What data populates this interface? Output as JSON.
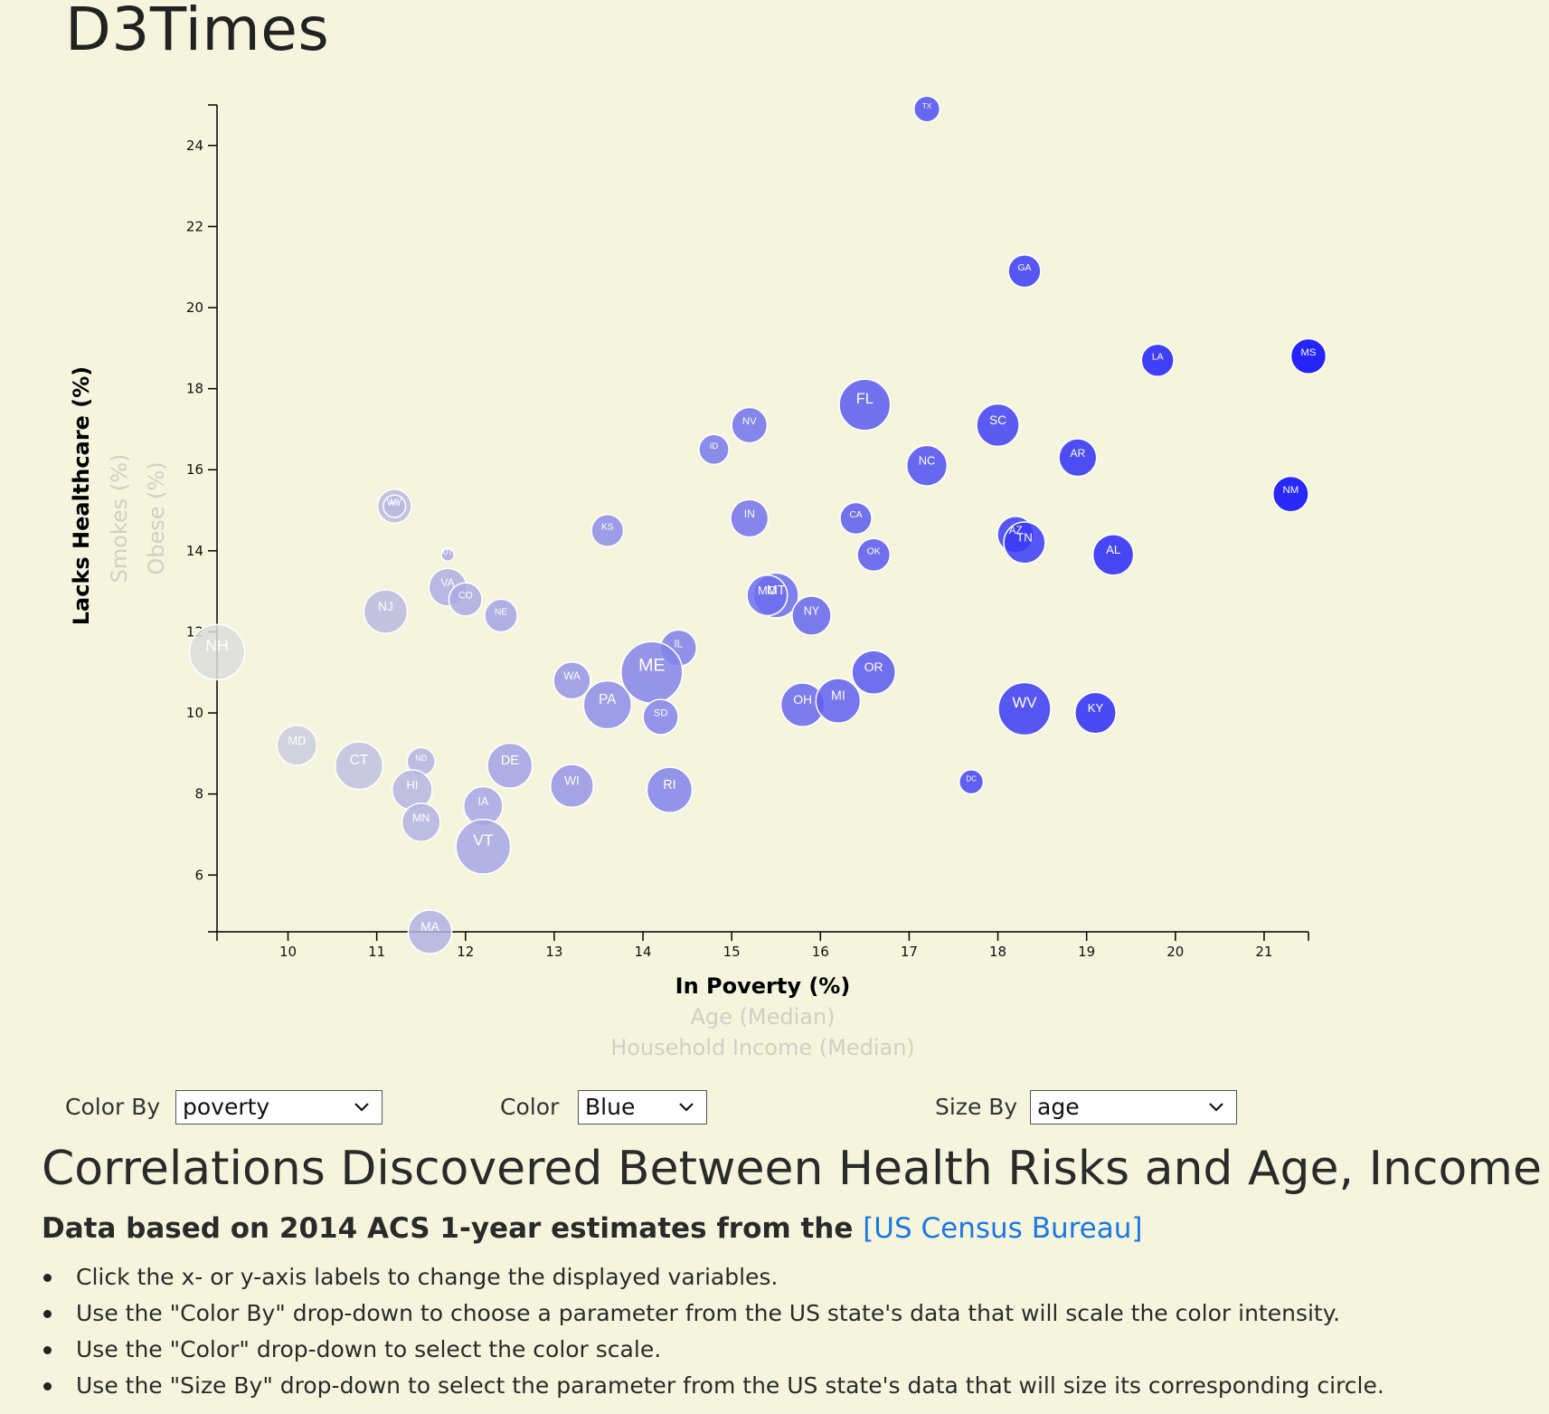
{
  "brand": "D3Times",
  "controls": {
    "color_by_label": "Color By",
    "color_by_value": "poverty",
    "color_label": "Color",
    "color_value": "Blue",
    "size_by_label": "Size By",
    "size_by_value": "age"
  },
  "headline": "Correlations Discovered Between Health Risks and Age, Income",
  "subhead": {
    "text": "Data based on 2014 ACS 1-year estimates from the ",
    "link_text": "[US Census Bureau]"
  },
  "notes": [
    "Click the x- or y-axis labels to change the displayed variables.",
    "Use the \"Color By\" drop-down to choose a parameter from the US state's data that will scale the color intensity.",
    "Use the \"Color\" drop-down to select the color scale.",
    "Use the \"Size By\" drop-down to select the parameter from the US state's data that will size its corresponding circle."
  ],
  "colors": {
    "background": "#f5f5de",
    "scale_low": "#dcdcdc",
    "scale_high": "#0000ff",
    "link": "#1b78e2"
  },
  "chart_data": {
    "type": "scatter",
    "x_axis_labels": [
      {
        "text": "In Poverty (%)",
        "active": true
      },
      {
        "text": "Age (Median)",
        "active": false
      },
      {
        "text": "Household Income (Median)",
        "active": false
      }
    ],
    "y_axis_labels": [
      {
        "text": "Lacks Healthcare (%)",
        "active": true
      },
      {
        "text": "Smokes (%)",
        "active": false
      },
      {
        "text": "Obese (%)",
        "active": false
      }
    ],
    "xlim": [
      9.2,
      21.5
    ],
    "ylim": [
      4.6,
      25.0
    ],
    "x_ticks": [
      10,
      11,
      12,
      13,
      14,
      15,
      16,
      17,
      18,
      19,
      20,
      21
    ],
    "y_ticks": [
      6,
      8,
      10,
      12,
      14,
      16,
      18,
      20,
      22,
      24
    ],
    "points": [
      {
        "abbr": "TX",
        "x": 17.2,
        "y": 24.9,
        "age": 34.3
      },
      {
        "abbr": "GA",
        "x": 18.3,
        "y": 20.9,
        "age": 36.2
      },
      {
        "abbr": "LA",
        "x": 19.8,
        "y": 18.7,
        "age": 36.2
      },
      {
        "abbr": "MS",
        "x": 21.5,
        "y": 18.8,
        "age": 37.0
      },
      {
        "abbr": "FL",
        "x": 16.5,
        "y": 17.6,
        "age": 41.6
      },
      {
        "abbr": "NV",
        "x": 15.2,
        "y": 17.1,
        "age": 37.1
      },
      {
        "abbr": "ID",
        "x": 14.8,
        "y": 16.5,
        "age": 35.5
      },
      {
        "abbr": "SC",
        "x": 18.0,
        "y": 17.1,
        "age": 39.1
      },
      {
        "abbr": "NC",
        "x": 17.2,
        "y": 16.1,
        "age": 38.5
      },
      {
        "abbr": "AR",
        "x": 18.9,
        "y": 16.3,
        "age": 37.7
      },
      {
        "abbr": "NM",
        "x": 21.3,
        "y": 15.4,
        "age": 37.1
      },
      {
        "abbr": "WY",
        "x": 11.2,
        "y": 15.1,
        "age": 36.6
      },
      {
        "abbr": "AK",
        "x": 11.2,
        "y": 15.1,
        "age": 33.3
      },
      {
        "abbr": "KS",
        "x": 13.6,
        "y": 14.5,
        "age": 36.1
      },
      {
        "abbr": "IN",
        "x": 15.2,
        "y": 14.8,
        "age": 37.7
      },
      {
        "abbr": "CA",
        "x": 16.4,
        "y": 14.8,
        "age": 36.0
      },
      {
        "abbr": "AZ",
        "x": 18.2,
        "y": 14.4,
        "age": 37.4
      },
      {
        "abbr": "TN",
        "x": 18.3,
        "y": 14.2,
        "age": 38.8
      },
      {
        "abbr": "AL",
        "x": 19.3,
        "y": 13.9,
        "age": 38.6
      },
      {
        "abbr": "OK",
        "x": 16.6,
        "y": 13.9,
        "age": 36.3
      },
      {
        "abbr": "UT",
        "x": 11.8,
        "y": 13.9,
        "age": 30.5
      },
      {
        "abbr": "VA",
        "x": 11.8,
        "y": 13.1,
        "age": 37.7
      },
      {
        "abbr": "CO",
        "x": 12.0,
        "y": 12.8,
        "age": 36.4
      },
      {
        "abbr": "NJ",
        "x": 11.1,
        "y": 12.5,
        "age": 39.4
      },
      {
        "abbr": "NE",
        "x": 12.4,
        "y": 12.4,
        "age": 36.3
      },
      {
        "abbr": "MT",
        "x": 15.5,
        "y": 12.9,
        "age": 39.8
      },
      {
        "abbr": "MO",
        "x": 15.4,
        "y": 12.9,
        "age": 38.5
      },
      {
        "abbr": "NY",
        "x": 15.9,
        "y": 12.4,
        "age": 38.1
      },
      {
        "abbr": "IL",
        "x": 14.4,
        "y": 11.6,
        "age": 37.3
      },
      {
        "abbr": "NH",
        "x": 9.2,
        "y": 11.5,
        "age": 42.8
      },
      {
        "abbr": "ME",
        "x": 14.1,
        "y": 11.0,
        "age": 44.6
      },
      {
        "abbr": "OR",
        "x": 16.6,
        "y": 11.0,
        "age": 39.4
      },
      {
        "abbr": "WA",
        "x": 13.2,
        "y": 10.8,
        "age": 37.5
      },
      {
        "abbr": "PA",
        "x": 13.6,
        "y": 10.2,
        "age": 40.7
      },
      {
        "abbr": "SD",
        "x": 14.2,
        "y": 9.9,
        "age": 37.0
      },
      {
        "abbr": "OH",
        "x": 15.8,
        "y": 10.2,
        "age": 39.4
      },
      {
        "abbr": "MI",
        "x": 16.2,
        "y": 10.3,
        "age": 39.7
      },
      {
        "abbr": "WV",
        "x": 18.3,
        "y": 10.1,
        "age": 42.0
      },
      {
        "abbr": "KY",
        "x": 19.1,
        "y": 10.0,
        "age": 38.7
      },
      {
        "abbr": "MD",
        "x": 10.1,
        "y": 9.2,
        "age": 38.4
      },
      {
        "abbr": "CT",
        "x": 10.8,
        "y": 8.7,
        "age": 40.6
      },
      {
        "abbr": "ND",
        "x": 11.5,
        "y": 8.8,
        "age": 34.9
      },
      {
        "abbr": "HI",
        "x": 11.4,
        "y": 8.1,
        "age": 38.4
      },
      {
        "abbr": "DE",
        "x": 12.5,
        "y": 8.7,
        "age": 39.8
      },
      {
        "abbr": "WI",
        "x": 13.2,
        "y": 8.2,
        "age": 39.2
      },
      {
        "abbr": "DC",
        "x": 17.7,
        "y": 8.3,
        "age": 33.8
      },
      {
        "abbr": "IA",
        "x": 12.2,
        "y": 7.7,
        "age": 38.1
      },
      {
        "abbr": "MN",
        "x": 11.5,
        "y": 7.3,
        "age": 37.9
      },
      {
        "abbr": "RI",
        "x": 14.3,
        "y": 8.1,
        "age": 39.9
      },
      {
        "abbr": "VT",
        "x": 12.2,
        "y": 6.7,
        "age": 42.6
      },
      {
        "abbr": "MA",
        "x": 11.6,
        "y": 4.6,
        "age": 39.4
      }
    ]
  }
}
